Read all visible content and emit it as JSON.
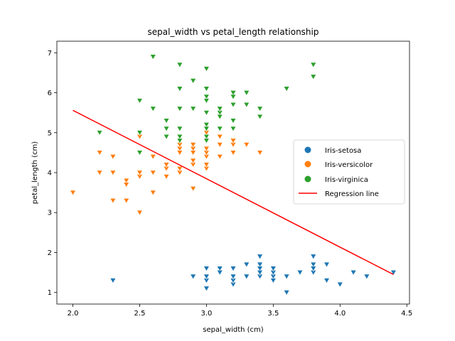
{
  "chart_data": {
    "type": "scatter",
    "title": "sepal_width vs petal_length relationship",
    "xlabel": "sepal_width (cm)",
    "ylabel": "petal_length (cm)",
    "xlim": [
      1.88,
      4.52
    ],
    "ylim": [
      0.71,
      7.29
    ],
    "xticks": [
      2.0,
      2.5,
      3.0,
      3.5,
      4.0,
      4.5
    ],
    "xtick_labels": [
      "2.0",
      "2.5",
      "3.0",
      "3.5",
      "4.0",
      "4.5"
    ],
    "yticks": [
      1,
      2,
      3,
      4,
      5,
      6,
      7
    ],
    "ytick_labels": [
      "1",
      "2",
      "3",
      "4",
      "5",
      "6",
      "7"
    ],
    "grid": false,
    "legend_position": "center-right",
    "marker": "triangle-down",
    "series": [
      {
        "name": "Iris-setosa",
        "color": "#1f77b4",
        "points": [
          [
            3.5,
            1.4
          ],
          [
            3.0,
            1.4
          ],
          [
            3.2,
            1.3
          ],
          [
            3.1,
            1.5
          ],
          [
            3.6,
            1.4
          ],
          [
            3.9,
            1.7
          ],
          [
            3.4,
            1.4
          ],
          [
            3.4,
            1.5
          ],
          [
            2.9,
            1.4
          ],
          [
            3.1,
            1.5
          ],
          [
            3.7,
            1.5
          ],
          [
            3.4,
            1.6
          ],
          [
            3.0,
            1.4
          ],
          [
            3.0,
            1.1
          ],
          [
            4.0,
            1.2
          ],
          [
            4.4,
            1.5
          ],
          [
            3.9,
            1.3
          ],
          [
            3.5,
            1.4
          ],
          [
            3.8,
            1.7
          ],
          [
            3.8,
            1.5
          ],
          [
            3.4,
            1.7
          ],
          [
            3.7,
            1.5
          ],
          [
            3.6,
            1.0
          ],
          [
            3.3,
            1.7
          ],
          [
            3.4,
            1.9
          ],
          [
            3.0,
            1.6
          ],
          [
            3.4,
            1.6
          ],
          [
            3.5,
            1.5
          ],
          [
            3.4,
            1.4
          ],
          [
            3.2,
            1.6
          ],
          [
            3.1,
            1.6
          ],
          [
            3.4,
            1.5
          ],
          [
            4.1,
            1.5
          ],
          [
            4.2,
            1.4
          ],
          [
            3.1,
            1.5
          ],
          [
            3.2,
            1.2
          ],
          [
            3.5,
            1.3
          ],
          [
            3.6,
            1.4
          ],
          [
            3.0,
            1.3
          ],
          [
            3.4,
            1.5
          ],
          [
            3.5,
            1.3
          ],
          [
            2.3,
            1.3
          ],
          [
            3.2,
            1.3
          ],
          [
            3.5,
            1.6
          ],
          [
            3.8,
            1.9
          ],
          [
            3.0,
            1.4
          ],
          [
            3.8,
            1.6
          ],
          [
            3.2,
            1.4
          ],
          [
            3.7,
            1.5
          ],
          [
            3.3,
            1.4
          ]
        ]
      },
      {
        "name": "Iris-versicolor",
        "color": "#ff7f0e",
        "points": [
          [
            3.2,
            4.7
          ],
          [
            3.2,
            4.5
          ],
          [
            3.1,
            4.9
          ],
          [
            2.3,
            4.0
          ],
          [
            2.8,
            4.6
          ],
          [
            2.8,
            4.5
          ],
          [
            3.3,
            4.7
          ],
          [
            2.4,
            3.3
          ],
          [
            2.9,
            4.6
          ],
          [
            2.7,
            3.9
          ],
          [
            2.0,
            3.5
          ],
          [
            3.0,
            4.2
          ],
          [
            2.2,
            4.0
          ],
          [
            2.9,
            4.7
          ],
          [
            2.9,
            3.6
          ],
          [
            3.1,
            4.4
          ],
          [
            3.0,
            4.5
          ],
          [
            2.7,
            4.1
          ],
          [
            2.2,
            4.5
          ],
          [
            2.5,
            3.9
          ],
          [
            3.2,
            4.8
          ],
          [
            2.8,
            4.0
          ],
          [
            2.5,
            4.9
          ],
          [
            2.8,
            4.7
          ],
          [
            2.9,
            4.3
          ],
          [
            3.0,
            4.4
          ],
          [
            2.8,
            4.8
          ],
          [
            3.0,
            5.0
          ],
          [
            2.9,
            4.5
          ],
          [
            2.6,
            3.5
          ],
          [
            2.4,
            3.8
          ],
          [
            2.4,
            3.7
          ],
          [
            2.7,
            3.9
          ],
          [
            2.7,
            5.1
          ],
          [
            3.0,
            4.5
          ],
          [
            3.4,
            4.5
          ],
          [
            3.1,
            4.7
          ],
          [
            2.3,
            4.4
          ],
          [
            3.0,
            4.1
          ],
          [
            2.5,
            4.0
          ],
          [
            2.6,
            4.4
          ],
          [
            3.0,
            4.6
          ],
          [
            2.6,
            4.0
          ],
          [
            2.3,
            3.3
          ],
          [
            2.7,
            4.2
          ],
          [
            3.0,
            4.2
          ],
          [
            2.9,
            4.2
          ],
          [
            2.9,
            4.3
          ],
          [
            2.5,
            3.0
          ],
          [
            2.8,
            4.1
          ]
        ]
      },
      {
        "name": "Iris-virginica",
        "color": "#2ca02c",
        "points": [
          [
            3.3,
            6.0
          ],
          [
            2.7,
            5.1
          ],
          [
            3.0,
            5.9
          ],
          [
            2.9,
            5.6
          ],
          [
            3.0,
            5.8
          ],
          [
            3.0,
            6.6
          ],
          [
            2.5,
            4.5
          ],
          [
            2.9,
            6.3
          ],
          [
            2.5,
            5.8
          ],
          [
            3.6,
            6.1
          ],
          [
            3.2,
            5.1
          ],
          [
            2.7,
            5.3
          ],
          [
            3.0,
            5.5
          ],
          [
            2.5,
            5.0
          ],
          [
            2.8,
            5.1
          ],
          [
            3.2,
            5.3
          ],
          [
            3.0,
            5.5
          ],
          [
            3.8,
            6.7
          ],
          [
            2.6,
            6.9
          ],
          [
            2.2,
            5.0
          ],
          [
            3.2,
            5.7
          ],
          [
            2.8,
            4.9
          ],
          [
            2.8,
            6.7
          ],
          [
            2.7,
            4.9
          ],
          [
            3.3,
            5.7
          ],
          [
            3.2,
            6.0
          ],
          [
            2.8,
            4.8
          ],
          [
            3.0,
            4.9
          ],
          [
            2.8,
            5.6
          ],
          [
            3.0,
            5.8
          ],
          [
            2.8,
            6.1
          ],
          [
            3.8,
            6.4
          ],
          [
            2.8,
            5.6
          ],
          [
            2.8,
            5.1
          ],
          [
            2.6,
            5.6
          ],
          [
            3.0,
            6.1
          ],
          [
            3.4,
            5.6
          ],
          [
            3.1,
            5.5
          ],
          [
            3.0,
            4.8
          ],
          [
            3.1,
            5.4
          ],
          [
            3.1,
            5.6
          ],
          [
            3.1,
            5.1
          ],
          [
            2.7,
            5.1
          ],
          [
            3.2,
            5.9
          ],
          [
            3.3,
            5.7
          ],
          [
            3.0,
            5.2
          ],
          [
            2.5,
            5.0
          ],
          [
            3.0,
            5.2
          ],
          [
            3.4,
            5.4
          ],
          [
            3.0,
            5.1
          ]
        ]
      }
    ],
    "regression": {
      "name": "Regression line",
      "color": "#ff0000",
      "x": [
        2.0,
        4.4
      ],
      "y": [
        5.56,
        1.45
      ]
    }
  }
}
